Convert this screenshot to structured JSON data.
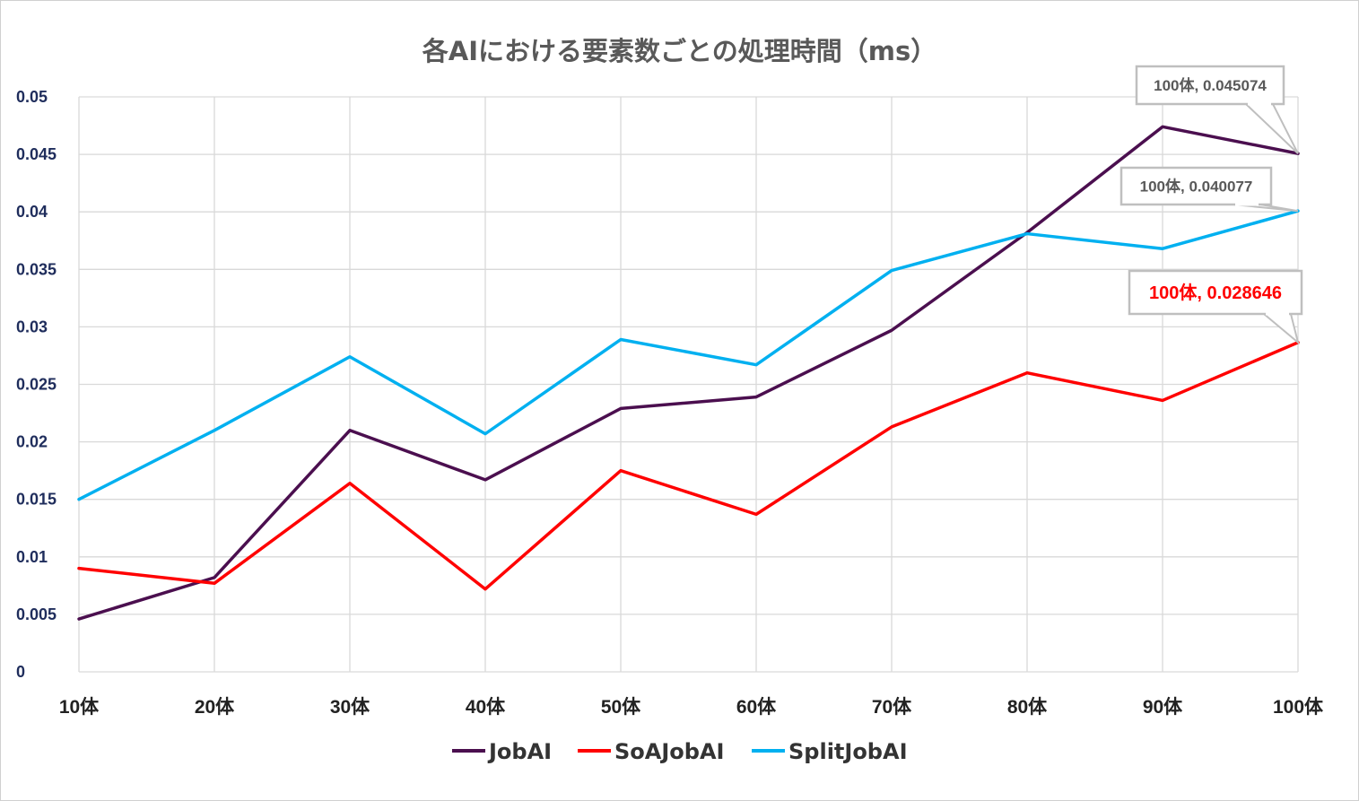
{
  "chart_data": {
    "type": "line",
    "title": "各AIにおける要素数ごとの処理時間（ms）",
    "xlabel": "",
    "ylabel": "",
    "categories": [
      "10体",
      "20体",
      "30体",
      "40体",
      "50体",
      "60体",
      "70体",
      "80体",
      "90体",
      "100体"
    ],
    "ylim": [
      0,
      0.05
    ],
    "yticks": [
      "0",
      "0.005",
      "0.01",
      "0.015",
      "0.02",
      "0.025",
      "0.03",
      "0.035",
      "0.04",
      "0.045",
      "0.05"
    ],
    "grid": true,
    "legend_position": "bottom",
    "series": [
      {
        "name": "JobAI",
        "color": "#4b0f4f",
        "values": [
          0.0046,
          0.0082,
          0.021,
          0.0167,
          0.0229,
          0.0239,
          0.0297,
          0.0382,
          0.0474,
          0.045074
        ]
      },
      {
        "name": "SoAJobAI",
        "color": "#ff0000",
        "values": [
          0.009,
          0.0077,
          0.0164,
          0.0072,
          0.0175,
          0.0137,
          0.0213,
          0.026,
          0.0236,
          0.028646
        ]
      },
      {
        "name": "SplitJobAI",
        "color": "#00b0f0",
        "values": [
          0.015,
          0.021,
          0.0274,
          0.0207,
          0.0289,
          0.0267,
          0.0349,
          0.0381,
          0.0368,
          0.040077
        ]
      }
    ],
    "annotations": [
      {
        "series": "JobAI",
        "text": "100体, 0.045074",
        "color": "#595959"
      },
      {
        "series": "SplitJobAI",
        "text": "100体, 0.040077",
        "color": "#595959"
      },
      {
        "series": "SoAJobAI",
        "text": "100体, 0.028646",
        "color": "#ff0000"
      }
    ]
  }
}
